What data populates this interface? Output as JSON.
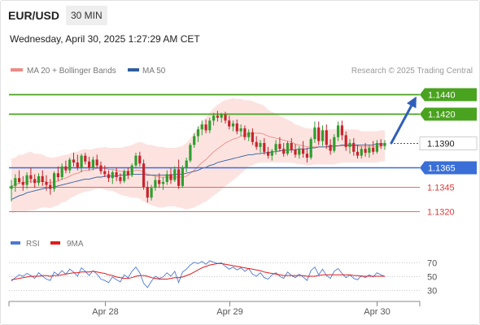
{
  "header": {
    "symbol": "EUR/USD",
    "timeframe": "30 MIN",
    "timestamp": "Wednesday, April 30, 2025 1:27:29 AM CET"
  },
  "legend": {
    "items": [
      {
        "label": "MA 20 + Bollinger Bands",
        "color": "#f08a84"
      },
      {
        "label": "MA 50",
        "color": "#2f5e9e"
      }
    ],
    "copyright": "Research © 2025 Trading Central"
  },
  "chart_data": {
    "type": "line",
    "title": "",
    "instrument": "EUR/USD",
    "timeframe": "30 MIN",
    "price_panel": {
      "series_type": "candlestick",
      "ylim": [
        1.1305,
        1.1455
      ],
      "last_price": 1.139,
      "projected_target": 1.144,
      "levels": [
        {
          "label": "1.1440",
          "value": 1.144,
          "kind": "resistance",
          "color": "#4aa31f"
        },
        {
          "label": "1.1420",
          "value": 1.142,
          "kind": "resistance",
          "color": "#4aa31f"
        },
        {
          "label": "1.1390",
          "value": 1.139,
          "kind": "last",
          "color": "#333333"
        },
        {
          "label": "1.1365",
          "value": 1.1365,
          "kind": "pivot",
          "color": "#3a6fd8"
        },
        {
          "label": "1.1345",
          "value": 1.1345,
          "kind": "support",
          "color": "#e03a3a"
        },
        {
          "label": "1.1320",
          "value": 1.132,
          "kind": "support",
          "color": "#e03a3a"
        }
      ],
      "candles": [
        [
          1.1343,
          1.1352,
          1.133,
          1.1346
        ],
        [
          1.1346,
          1.1358,
          1.134,
          1.1354
        ],
        [
          1.1354,
          1.1362,
          1.1348,
          1.135
        ],
        [
          1.135,
          1.1356,
          1.1341,
          1.1347
        ],
        [
          1.1347,
          1.136,
          1.1343,
          1.1357
        ],
        [
          1.1357,
          1.1365,
          1.1349,
          1.1353
        ],
        [
          1.1353,
          1.1358,
          1.1344,
          1.1349
        ],
        [
          1.1349,
          1.1359,
          1.1346,
          1.1356
        ],
        [
          1.1356,
          1.1362,
          1.1346,
          1.135
        ],
        [
          1.135,
          1.1357,
          1.1341,
          1.1347
        ],
        [
          1.1347,
          1.1353,
          1.1337,
          1.1343
        ],
        [
          1.1343,
          1.1361,
          1.134,
          1.1359
        ],
        [
          1.1359,
          1.1366,
          1.1351,
          1.1355
        ],
        [
          1.1355,
          1.1369,
          1.1352,
          1.1366
        ],
        [
          1.1366,
          1.1372,
          1.1359,
          1.1362
        ],
        [
          1.1362,
          1.1375,
          1.1359,
          1.1373
        ],
        [
          1.1373,
          1.138,
          1.1366,
          1.137
        ],
        [
          1.137,
          1.1378,
          1.1362,
          1.1365
        ],
        [
          1.1365,
          1.1379,
          1.136,
          1.1377
        ],
        [
          1.1377,
          1.138,
          1.1368,
          1.1371
        ],
        [
          1.1371,
          1.1376,
          1.1362,
          1.1365
        ],
        [
          1.1365,
          1.1376,
          1.1362,
          1.1373
        ],
        [
          1.1373,
          1.1378,
          1.1364,
          1.1367
        ],
        [
          1.1367,
          1.1371,
          1.1358,
          1.1361
        ],
        [
          1.1361,
          1.1367,
          1.1355,
          1.1358
        ],
        [
          1.1358,
          1.1362,
          1.135,
          1.1354
        ],
        [
          1.1354,
          1.1362,
          1.1348,
          1.136
        ],
        [
          1.136,
          1.1365,
          1.1351,
          1.1355
        ],
        [
          1.1355,
          1.1359,
          1.1348,
          1.1351
        ],
        [
          1.1351,
          1.1363,
          1.1349,
          1.1361
        ],
        [
          1.1361,
          1.1365,
          1.1353,
          1.1357
        ],
        [
          1.1357,
          1.1369,
          1.1355,
          1.1367
        ],
        [
          1.1367,
          1.138,
          1.1364,
          1.1377
        ],
        [
          1.1377,
          1.1381,
          1.1366,
          1.1369
        ],
        [
          1.1369,
          1.1373,
          1.1342,
          1.1345
        ],
        [
          1.1345,
          1.1351,
          1.1329,
          1.1334
        ],
        [
          1.1334,
          1.1347,
          1.1331,
          1.1344
        ],
        [
          1.1344,
          1.1356,
          1.1341,
          1.1352
        ],
        [
          1.1352,
          1.1359,
          1.1344,
          1.1348
        ],
        [
          1.1348,
          1.1355,
          1.1342,
          1.135
        ],
        [
          1.135,
          1.1362,
          1.1347,
          1.1358
        ],
        [
          1.1358,
          1.1364,
          1.1348,
          1.1352
        ],
        [
          1.1352,
          1.1366,
          1.135,
          1.1363
        ],
        [
          1.1363,
          1.1373,
          1.1343,
          1.1346
        ],
        [
          1.1346,
          1.1367,
          1.1344,
          1.1365
        ],
        [
          1.1365,
          1.1375,
          1.136,
          1.1372
        ],
        [
          1.1372,
          1.139,
          1.137,
          1.1388
        ],
        [
          1.1388,
          1.14,
          1.1385,
          1.1397
        ],
        [
          1.1397,
          1.1407,
          1.1391,
          1.1404
        ],
        [
          1.1404,
          1.1413,
          1.1398,
          1.1409
        ],
        [
          1.1409,
          1.1414,
          1.14,
          1.1403
        ],
        [
          1.1403,
          1.1416,
          1.14,
          1.1413
        ],
        [
          1.1413,
          1.1421,
          1.1408,
          1.1418
        ],
        [
          1.1418,
          1.1423,
          1.1412,
          1.1416
        ],
        [
          1.1416,
          1.1421,
          1.1411,
          1.1419
        ],
        [
          1.1419,
          1.1422,
          1.141,
          1.1413
        ],
        [
          1.1413,
          1.1418,
          1.1404,
          1.1407
        ],
        [
          1.1407,
          1.1413,
          1.1402,
          1.141
        ],
        [
          1.141,
          1.1414,
          1.1399,
          1.1402
        ],
        [
          1.1402,
          1.1409,
          1.1397,
          1.1405
        ],
        [
          1.1405,
          1.1408,
          1.1393,
          1.1396
        ],
        [
          1.1396,
          1.1404,
          1.1392,
          1.1401
        ],
        [
          1.1401,
          1.1405,
          1.1388,
          1.1391
        ],
        [
          1.1391,
          1.1397,
          1.1383,
          1.1386
        ],
        [
          1.1386,
          1.1393,
          1.138,
          1.139
        ],
        [
          1.139,
          1.1395,
          1.1378,
          1.1381
        ],
        [
          1.1381,
          1.1386,
          1.1374,
          1.1377
        ],
        [
          1.1377,
          1.1384,
          1.1372,
          1.1382
        ],
        [
          1.1382,
          1.1393,
          1.1378,
          1.1389
        ],
        [
          1.1389,
          1.1396,
          1.1381,
          1.1384
        ],
        [
          1.1384,
          1.139,
          1.1376,
          1.1379
        ],
        [
          1.1379,
          1.1392,
          1.1377,
          1.139
        ],
        [
          1.139,
          1.1395,
          1.138,
          1.1383
        ],
        [
          1.1383,
          1.1389,
          1.1375,
          1.1378
        ],
        [
          1.1378,
          1.1387,
          1.1374,
          1.1384
        ],
        [
          1.1384,
          1.1392,
          1.1375,
          1.1379
        ],
        [
          1.1379,
          1.1385,
          1.137,
          1.1375
        ],
        [
          1.1375,
          1.1396,
          1.1373,
          1.1394
        ],
        [
          1.1394,
          1.1412,
          1.139,
          1.1406
        ],
        [
          1.1406,
          1.1412,
          1.1388,
          1.1392
        ],
        [
          1.1392,
          1.1408,
          1.1387,
          1.1403
        ],
        [
          1.1403,
          1.1409,
          1.1384,
          1.1388
        ],
        [
          1.1388,
          1.1394,
          1.1378,
          1.1382
        ],
        [
          1.1382,
          1.1399,
          1.138,
          1.1396
        ],
        [
          1.1396,
          1.1412,
          1.1392,
          1.1408
        ],
        [
          1.1408,
          1.1413,
          1.1393,
          1.1398
        ],
        [
          1.1398,
          1.1402,
          1.1382,
          1.1386
        ],
        [
          1.1386,
          1.1394,
          1.1379,
          1.139
        ],
        [
          1.139,
          1.1395,
          1.1377,
          1.1381
        ],
        [
          1.1381,
          1.1388,
          1.1374,
          1.1377
        ],
        [
          1.1377,
          1.1387,
          1.1374,
          1.1384
        ],
        [
          1.1384,
          1.139,
          1.1376,
          1.138
        ],
        [
          1.138,
          1.1388,
          1.1375,
          1.1385
        ],
        [
          1.1385,
          1.1392,
          1.1378,
          1.1381
        ],
        [
          1.1381,
          1.1393,
          1.1379,
          1.139
        ],
        [
          1.139,
          1.1394,
          1.1384,
          1.1387
        ],
        [
          1.1387,
          1.1393,
          1.1383,
          1.139
        ]
      ],
      "ma20": [
        1.1346,
        1.1347,
        1.1349,
        1.1349,
        1.135,
        1.1351,
        1.135,
        1.1351,
        1.1351,
        1.135,
        1.1349,
        1.135,
        1.1351,
        1.1353,
        1.1354,
        1.1356,
        1.1358,
        1.1359,
        1.1361,
        1.1362,
        1.1362,
        1.1363,
        1.1364,
        1.1364,
        1.1364,
        1.1363,
        1.1363,
        1.1362,
        1.1361,
        1.1361,
        1.1361,
        1.1361,
        1.1362,
        1.1362,
        1.136,
        1.1358,
        1.1357,
        1.1356,
        1.1355,
        1.1355,
        1.1355,
        1.1355,
        1.1355,
        1.1355,
        1.1355,
        1.1356,
        1.1359,
        1.1362,
        1.1366,
        1.137,
        1.1373,
        1.1377,
        1.1381,
        1.1384,
        1.1387,
        1.139,
        1.1392,
        1.1394,
        1.1395,
        1.1397,
        1.1398,
        1.14,
        1.14,
        1.14,
        1.14,
        1.1399,
        1.1397,
        1.1396,
        1.1395,
        1.1394,
        1.1393,
        1.1392,
        1.1391,
        1.1389,
        1.1388,
        1.1387,
        1.1386,
        1.1386,
        1.1386,
        1.1386,
        1.1386,
        1.1386,
        1.1386,
        1.1386,
        1.1387,
        1.1387,
        1.1387,
        1.1387,
        1.1387,
        1.1387,
        1.1386,
        1.1386,
        1.1386,
        1.1386,
        1.1386,
        1.1387,
        1.1387
      ],
      "ma50": [
        1.1332,
        1.1334,
        1.1336,
        1.1337,
        1.1339,
        1.134,
        1.1341,
        1.1342,
        1.1343,
        1.1344,
        1.1344,
        1.1345,
        1.1346,
        1.1347,
        1.1348,
        1.1349,
        1.135,
        1.1351,
        1.1352,
        1.1353,
        1.1353,
        1.1354,
        1.1355,
        1.1355,
        1.1356,
        1.1356,
        1.1356,
        1.1356,
        1.1357,
        1.1357,
        1.1357,
        1.1358,
        1.1358,
        1.1358,
        1.1358,
        1.1357,
        1.1357,
        1.1357,
        1.1357,
        1.1357,
        1.1357,
        1.1357,
        1.1358,
        1.1358,
        1.1358,
        1.1359,
        1.136,
        1.1361,
        1.1362,
        1.1364,
        1.1365,
        1.1367,
        1.1368,
        1.137,
        1.1371,
        1.1372,
        1.1373,
        1.1374,
        1.1375,
        1.1376,
        1.1377,
        1.1378,
        1.1378,
        1.1379,
        1.1379,
        1.138,
        1.138,
        1.1381,
        1.1381,
        1.1382,
        1.1382,
        1.1383,
        1.1383,
        1.1383,
        1.1384,
        1.1384,
        1.1384,
        1.1385,
        1.1385,
        1.1386,
        1.1386,
        1.1386,
        1.1387,
        1.1387,
        1.1387,
        1.1388,
        1.1388,
        1.1388,
        1.1388,
        1.1388,
        1.1388,
        1.1388,
        1.1388,
        1.1388,
        1.1389,
        1.1389,
        1.1389
      ],
      "bollinger_width": [
        0.0028,
        0.0028,
        0.0029,
        0.0029,
        0.003,
        0.003,
        0.0029,
        0.0028,
        0.0027,
        0.0026,
        0.0026,
        0.0025,
        0.0025,
        0.0024,
        0.0024,
        0.0023,
        0.0023,
        0.0022,
        0.0022,
        0.0022,
        0.0021,
        0.0021,
        0.0021,
        0.0021,
        0.0022,
        0.0022,
        0.0022,
        0.0023,
        0.0024,
        0.0025,
        0.0026,
        0.0027,
        0.0028,
        0.0029,
        0.003,
        0.003,
        0.0031,
        0.0031,
        0.0031,
        0.0031,
        0.003,
        0.003,
        0.003,
        0.0031,
        0.0032,
        0.0034,
        0.0036,
        0.0038,
        0.004,
        0.0042,
        0.0043,
        0.0044,
        0.0045,
        0.0045,
        0.0045,
        0.0044,
        0.0043,
        0.0042,
        0.004,
        0.0038,
        0.0036,
        0.0034,
        0.0033,
        0.0031,
        0.003,
        0.0029,
        0.0027,
        0.0026,
        0.0025,
        0.0024,
        0.0023,
        0.0022,
        0.0021,
        0.002,
        0.002,
        0.0019,
        0.0019,
        0.0019,
        0.0018,
        0.0018,
        0.0018,
        0.0018,
        0.0018,
        0.0018,
        0.0018,
        0.0017,
        0.0017,
        0.0017,
        0.0017,
        0.0017,
        0.0016,
        0.0016,
        0.0016,
        0.0016,
        0.0016,
        0.0016,
        0.0016
      ]
    },
    "rsi_panel": {
      "legend": [
        {
          "label": "RSI",
          "color": "#4b78d6"
        },
        {
          "label": "9MA",
          "color": "#e01c1c"
        }
      ],
      "ylim": [
        20,
        80
      ],
      "yticks": [
        70,
        50,
        30
      ],
      "rsi": [
        43,
        48,
        52,
        50,
        54,
        51,
        47,
        55,
        50,
        46,
        44,
        56,
        52,
        58,
        53,
        60,
        56,
        50,
        62,
        57,
        51,
        58,
        53,
        46,
        44,
        41,
        49,
        45,
        42,
        52,
        48,
        57,
        63,
        55,
        40,
        34,
        43,
        50,
        47,
        49,
        55,
        50,
        57,
        41,
        56,
        60,
        66,
        70,
        68,
        71,
        67,
        72,
        70,
        68,
        69,
        64,
        60,
        63,
        59,
        62,
        57,
        61,
        53,
        50,
        55,
        48,
        46,
        52,
        55,
        50,
        47,
        56,
        51,
        48,
        53,
        49,
        44,
        58,
        63,
        52,
        60,
        51,
        47,
        57,
        61,
        54,
        48,
        52,
        47,
        45,
        51,
        48,
        52,
        49,
        55,
        52,
        50
      ],
      "ma9": [
        45,
        46,
        47,
        48,
        49,
        50,
        50,
        50,
        51,
        51,
        50,
        51,
        51,
        52,
        53,
        54,
        55,
        55,
        56,
        56,
        56,
        57,
        56,
        55,
        54,
        52,
        51,
        49,
        48,
        47,
        47,
        48,
        50,
        51,
        51,
        50,
        48,
        47,
        46,
        46,
        46,
        47,
        48,
        48,
        49,
        51,
        53,
        56,
        59,
        62,
        64,
        66,
        67,
        68,
        68,
        67,
        66,
        65,
        64,
        63,
        62,
        61,
        60,
        59,
        58,
        56,
        55,
        54,
        53,
        52,
        51,
        51,
        51,
        51,
        51,
        51,
        50,
        50,
        50,
        51,
        52,
        52,
        52,
        52,
        52,
        52,
        52,
        52,
        51,
        51,
        50,
        50,
        50,
        50,
        50,
        50,
        50
      ]
    },
    "x_axis": {
      "ticks": [
        {
          "label": "Apr 28",
          "index": 24
        },
        {
          "label": "Apr 29",
          "index": 56
        },
        {
          "label": "Apr 30",
          "index": 94
        }
      ]
    }
  }
}
